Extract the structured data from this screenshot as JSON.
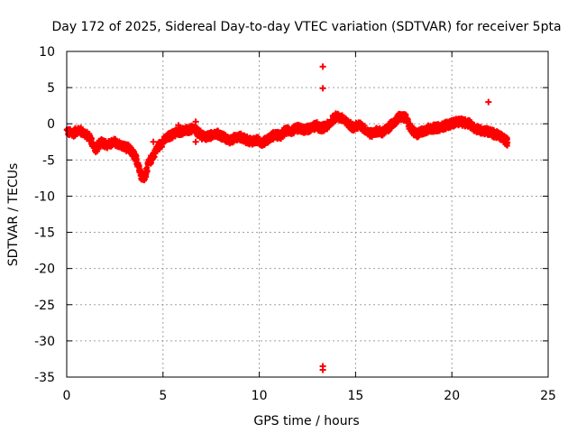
{
  "chart_data": {
    "type": "scatter",
    "title": "Day 172 of 2025, Sidereal Day-to-day VTEC variation (SDTVAR) for receiver 5pta",
    "xlabel": "GPS time / hours",
    "ylabel": "SDTVAR / TECUs",
    "xlim": [
      0,
      25
    ],
    "ylim": [
      -35,
      10
    ],
    "xticks": [
      0,
      5,
      10,
      15,
      20,
      25
    ],
    "yticks": [
      -35,
      -30,
      -25,
      -20,
      -15,
      -10,
      -5,
      0,
      5,
      10
    ],
    "xtick_labels": [
      "0",
      "5",
      "10",
      "15",
      "20",
      "25"
    ],
    "ytick_labels": [
      "-35",
      "-30",
      "-25",
      "-20",
      "-15",
      "-10",
      "-5",
      "0",
      "5",
      "10"
    ],
    "grid": true,
    "grid_style": "dotted",
    "marker": "+",
    "series": [
      {
        "name": "SDTVAR",
        "color": "#ff0000",
        "trace": [
          [
            0.0,
            -1.0
          ],
          [
            0.3,
            -1.4
          ],
          [
            0.6,
            -0.8
          ],
          [
            0.9,
            -1.3
          ],
          [
            1.2,
            -1.9
          ],
          [
            1.5,
            -3.6
          ],
          [
            1.8,
            -2.4
          ],
          [
            2.1,
            -3.0
          ],
          [
            2.5,
            -2.5
          ],
          [
            2.9,
            -3.1
          ],
          [
            3.2,
            -3.4
          ],
          [
            3.5,
            -4.3
          ],
          [
            3.7,
            -5.5
          ],
          [
            3.9,
            -7.2
          ],
          [
            4.05,
            -7.5
          ],
          [
            4.2,
            -5.8
          ],
          [
            4.5,
            -4.3
          ],
          [
            4.8,
            -3.0
          ],
          [
            5.1,
            -2.2
          ],
          [
            5.4,
            -1.6
          ],
          [
            5.7,
            -1.2
          ],
          [
            6.0,
            -1.0
          ],
          [
            6.3,
            -0.9
          ],
          [
            6.6,
            -0.7
          ],
          [
            6.9,
            -1.4
          ],
          [
            7.2,
            -1.9
          ],
          [
            7.5,
            -1.6
          ],
          [
            7.8,
            -1.4
          ],
          [
            8.1,
            -1.8
          ],
          [
            8.4,
            -2.3
          ],
          [
            8.7,
            -2.0
          ],
          [
            9.0,
            -1.8
          ],
          [
            9.3,
            -2.2
          ],
          [
            9.6,
            -2.4
          ],
          [
            9.9,
            -2.3
          ],
          [
            10.2,
            -2.6
          ],
          [
            10.5,
            -2.0
          ],
          [
            10.8,
            -1.5
          ],
          [
            11.1,
            -1.7
          ],
          [
            11.4,
            -0.9
          ],
          [
            11.7,
            -1.0
          ],
          [
            12.0,
            -0.6
          ],
          [
            12.3,
            -0.8
          ],
          [
            12.6,
            -0.7
          ],
          [
            12.9,
            -0.3
          ],
          [
            13.2,
            -0.6
          ],
          [
            13.5,
            -0.4
          ],
          [
            13.8,
            0.5
          ],
          [
            14.0,
            1.0
          ],
          [
            14.3,
            0.7
          ],
          [
            14.6,
            0.0
          ],
          [
            14.9,
            -0.5
          ],
          [
            15.2,
            -0.2
          ],
          [
            15.5,
            -0.8
          ],
          [
            15.8,
            -1.4
          ],
          [
            16.1,
            -1.0
          ],
          [
            16.4,
            -1.2
          ],
          [
            16.7,
            -0.6
          ],
          [
            17.0,
            0.2
          ],
          [
            17.3,
            1.0
          ],
          [
            17.6,
            0.8
          ],
          [
            17.9,
            -0.8
          ],
          [
            18.2,
            -1.4
          ],
          [
            18.5,
            -1.0
          ],
          [
            18.8,
            -0.7
          ],
          [
            19.1,
            -0.6
          ],
          [
            19.4,
            -0.5
          ],
          [
            19.7,
            -0.2
          ],
          [
            20.0,
            0.0
          ],
          [
            20.3,
            0.3
          ],
          [
            20.6,
            0.2
          ],
          [
            20.9,
            0.0
          ],
          [
            21.2,
            -0.6
          ],
          [
            21.5,
            -0.9
          ],
          [
            21.8,
            -1.0
          ],
          [
            22.1,
            -1.3
          ],
          [
            22.4,
            -1.6
          ],
          [
            22.7,
            -2.0
          ],
          [
            22.9,
            -2.6
          ]
        ],
        "outliers": [
          [
            13.3,
            7.9
          ],
          [
            13.3,
            4.9
          ],
          [
            21.9,
            3.0
          ],
          [
            13.3,
            -33.5
          ],
          [
            13.3,
            -34.0
          ],
          [
            4.5,
            -2.5
          ],
          [
            5.8,
            -0.2
          ],
          [
            6.7,
            -2.5
          ],
          [
            6.7,
            0.3
          ],
          [
            13.0,
            0.2
          ]
        ]
      }
    ]
  }
}
